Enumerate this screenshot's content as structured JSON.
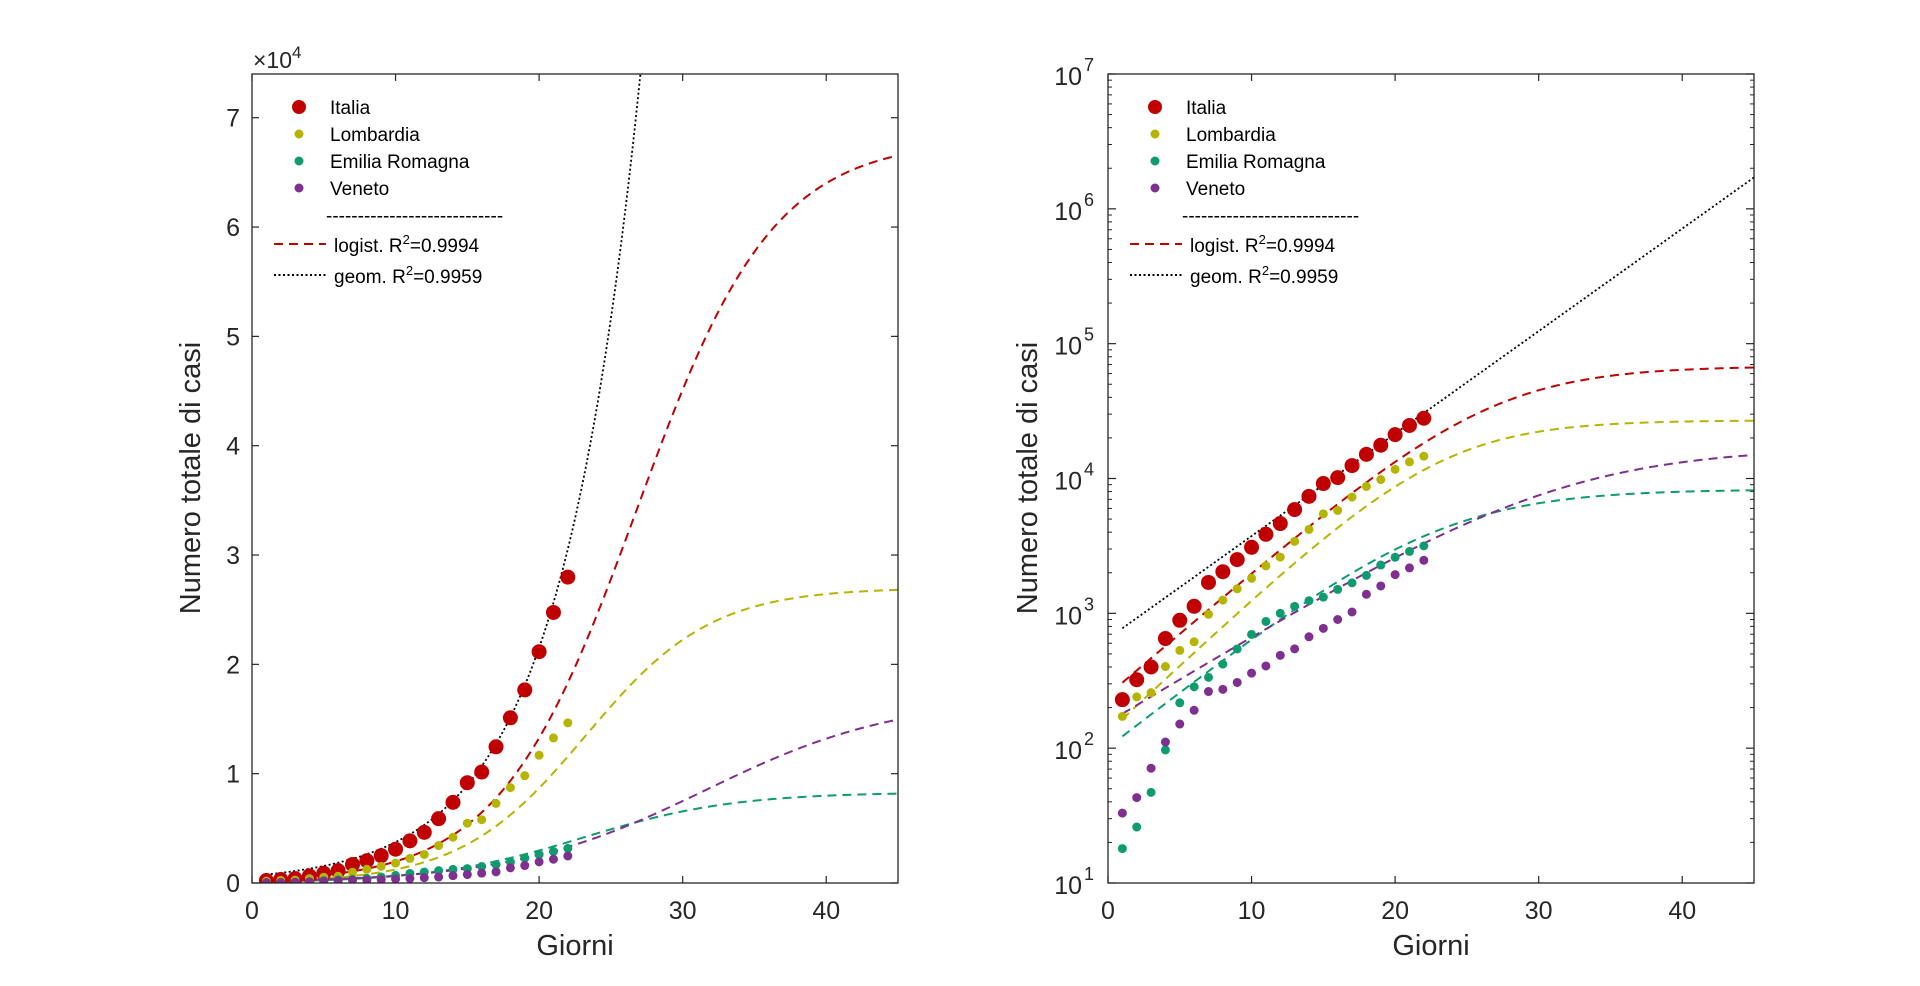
{
  "chart_data": [
    {
      "type": "scatter",
      "panel": "linear",
      "xlabel": "Giorni",
      "ylabel": "Numero totale di casi",
      "xlim": [
        0,
        45
      ],
      "ylim": [
        0,
        74000
      ],
      "xticks": [
        "0",
        "10",
        "20",
        "30",
        "40"
      ],
      "yticks": [
        "0",
        "1",
        "2",
        "3",
        "4",
        "5",
        "6",
        "7"
      ],
      "y_multiplier": "×10",
      "y_multiplier_exp": "4",
      "yscale": "linear",
      "legend_position": "top-left"
    },
    {
      "type": "scatter",
      "panel": "log",
      "xlabel": "Giorni",
      "ylabel": "Numero totale di casi",
      "xlim": [
        0,
        45
      ],
      "ylim": [
        10,
        10000000
      ],
      "xticks": [
        "0",
        "10",
        "20",
        "30",
        "40"
      ],
      "ytick_base": "10",
      "ytick_exps": [
        "1",
        "2",
        "3",
        "4",
        "5",
        "6",
        "7"
      ],
      "yscale": "log",
      "legend_position": "top-left"
    }
  ],
  "series": [
    {
      "name": "Italia",
      "color": "#c00000",
      "marker_size": "large",
      "x": [
        1,
        2,
        3,
        4,
        5,
        6,
        7,
        8,
        9,
        10,
        11,
        12,
        13,
        14,
        15,
        16,
        17,
        18,
        19,
        20,
        21,
        22
      ],
      "y": [
        229,
        322,
        400,
        650,
        888,
        1128,
        1694,
        2036,
        2502,
        3089,
        3858,
        4636,
        5883,
        7375,
        9172,
        10149,
        12462,
        15113,
        17660,
        21157,
        24747,
        27980
      ]
    },
    {
      "name": "Lombardia",
      "color": "#b5b500",
      "marker_size": "small",
      "x": [
        1,
        2,
        3,
        4,
        5,
        6,
        7,
        8,
        9,
        10,
        11,
        12,
        13,
        14,
        15,
        16,
        17,
        18,
        19,
        20,
        21,
        22
      ],
      "y": [
        172,
        240,
        258,
        403,
        531,
        615,
        984,
        1254,
        1520,
        1820,
        2251,
        2612,
        3420,
        4189,
        5469,
        5791,
        7280,
        8725,
        9820,
        11685,
        13272,
        14649
      ]
    },
    {
      "name": "Emilia Romagna",
      "color": "#0f9b70",
      "marker_size": "small",
      "x": [
        1,
        2,
        3,
        4,
        5,
        6,
        7,
        8,
        9,
        10,
        11,
        12,
        13,
        14,
        15,
        16,
        17,
        18,
        19,
        20,
        21,
        22
      ],
      "y": [
        18,
        26,
        47,
        97,
        217,
        285,
        335,
        420,
        544,
        698,
        870,
        1001,
        1127,
        1241,
        1318,
        1505,
        1682,
        1911,
        2282,
        2604,
        2878,
        3165
      ]
    },
    {
      "name": "Veneto",
      "color": "#7f2f8f",
      "marker_size": "small",
      "x": [
        1,
        2,
        3,
        4,
        5,
        6,
        7,
        8,
        9,
        10,
        11,
        12,
        13,
        14,
        15,
        16,
        17,
        18,
        19,
        20,
        21,
        22
      ],
      "y": [
        33,
        43,
        71,
        111,
        151,
        191,
        263,
        273,
        307,
        360,
        407,
        488,
        545,
        670,
        774,
        900,
        1023,
        1384,
        1595,
        1937,
        2172,
        2473
      ]
    }
  ],
  "fits": [
    {
      "name": "Italia logistic",
      "series": "Italia",
      "color": "#c00000",
      "style": "dashed",
      "K": 68000,
      "r": 0.2096,
      "t0": 26.76
    },
    {
      "name": "Lombardia logistic",
      "series": "Lombardia",
      "color": "#b5b500",
      "style": "dashed",
      "K": 27000,
      "r": 0.2289,
      "t0": 23.26
    },
    {
      "name": "Emilia Romagna logistic",
      "series": "Emilia Romagna",
      "color": "#0f9b70",
      "style": "dashed",
      "K": 8300,
      "r": 0.1905,
      "t0": 23.06
    },
    {
      "name": "Veneto logistic",
      "series": "Veneto",
      "color": "#7f2f8f",
      "style": "dashed",
      "K": 17000,
      "r": 0.1483,
      "t0": 31.6
    },
    {
      "name": "geometric",
      "color": "#000000",
      "style": "dotted",
      "a": 650,
      "r": 0.175
    }
  ],
  "legend": {
    "items": [
      {
        "label": "Italia",
        "color": "#c00000"
      },
      {
        "label": "Lombardia",
        "color": "#b5b500"
      },
      {
        "label": "Emilia Romagna",
        "color": "#0f9b70"
      },
      {
        "label": "Veneto",
        "color": "#7f2f8f"
      }
    ],
    "separator": "----------------------------",
    "logist_label": "logist.",
    "geom_label": "geom.",
    "r_symbol": "R",
    "r_exp": "2",
    "logist_value": "=0.9994",
    "geom_value": "=0.9959"
  }
}
